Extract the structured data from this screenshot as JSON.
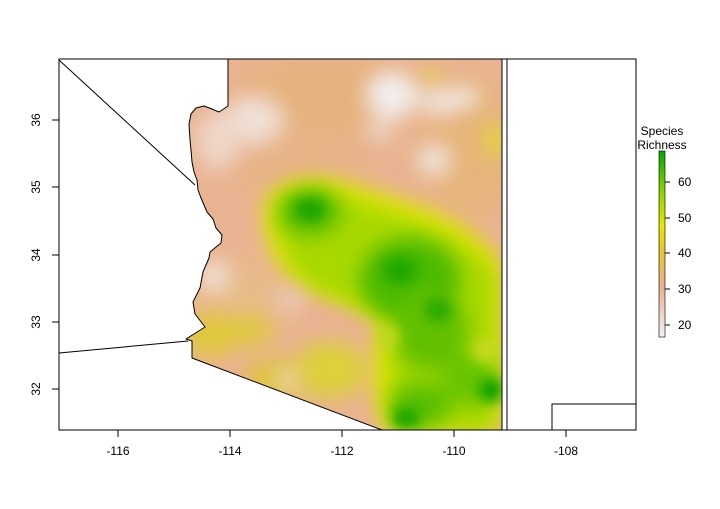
{
  "chart_data": {
    "type": "heatmap",
    "title": "",
    "xlabel": "",
    "ylabel": "",
    "xlim": [
      -117.05,
      -106.75
    ],
    "ylim": [
      31.35,
      36.9
    ],
    "x_ticks": [
      -116,
      -114,
      -112,
      -110,
      -108
    ],
    "x_tick_labels": [
      "-116",
      "-114",
      "-112",
      "-110",
      "-108"
    ],
    "y_ticks": [
      32,
      33,
      34,
      35,
      36
    ],
    "y_tick_labels": [
      "32",
      "33",
      "34",
      "35",
      "36"
    ],
    "grid": false,
    "legend": {
      "title_line1": "Species",
      "title_line2": "Richness",
      "placement": "right",
      "range": [
        16,
        68
      ],
      "ticks": [
        20,
        30,
        40,
        50,
        60
      ],
      "tick_labels": [
        "20",
        "30",
        "40",
        "50",
        "60"
      ],
      "colors": [
        "#f2f2f2",
        "#ebb190",
        "#e8c430",
        "#e8e800",
        "#80d000",
        "#00a600"
      ]
    },
    "region": "Arizona",
    "richness_hotspots": [
      {
        "lon": -112.6,
        "lat": 34.7,
        "value": 62
      },
      {
        "lon": -110.9,
        "lat": 33.7,
        "value": 64
      },
      {
        "lon": -110.4,
        "lat": 33.3,
        "value": 60
      },
      {
        "lon": -110.8,
        "lat": 32.9,
        "value": 58
      },
      {
        "lon": -109.5,
        "lat": 32.4,
        "value": 56
      },
      {
        "lon": -109.3,
        "lat": 32.0,
        "value": 64
      },
      {
        "lon": -110.8,
        "lat": 31.55,
        "value": 66
      },
      {
        "lon": -109.6,
        "lat": 33.1,
        "value": 55
      }
    ],
    "low_richness_spots": [
      {
        "lon": -110.7,
        "lat": 36.3,
        "value": 18
      },
      {
        "lon": -109.7,
        "lat": 36.3,
        "value": 20
      },
      {
        "lon": -110.1,
        "lat": 35.6,
        "value": 21
      },
      {
        "lon": -113.8,
        "lat": 35.6,
        "value": 24
      },
      {
        "lon": -113.8,
        "lat": 36.5,
        "value": 25
      },
      {
        "lon": -114.1,
        "lat": 33.7,
        "value": 22
      },
      {
        "lon": -112.5,
        "lat": 31.95,
        "value": 26
      }
    ],
    "yellow_patches": [
      {
        "lon": -114.4,
        "lat": 32.6,
        "value": 40
      },
      {
        "lon": -112.3,
        "lat": 32.3,
        "value": 40
      },
      {
        "lon": -113.2,
        "lat": 32.8,
        "value": 39
      }
    ]
  }
}
